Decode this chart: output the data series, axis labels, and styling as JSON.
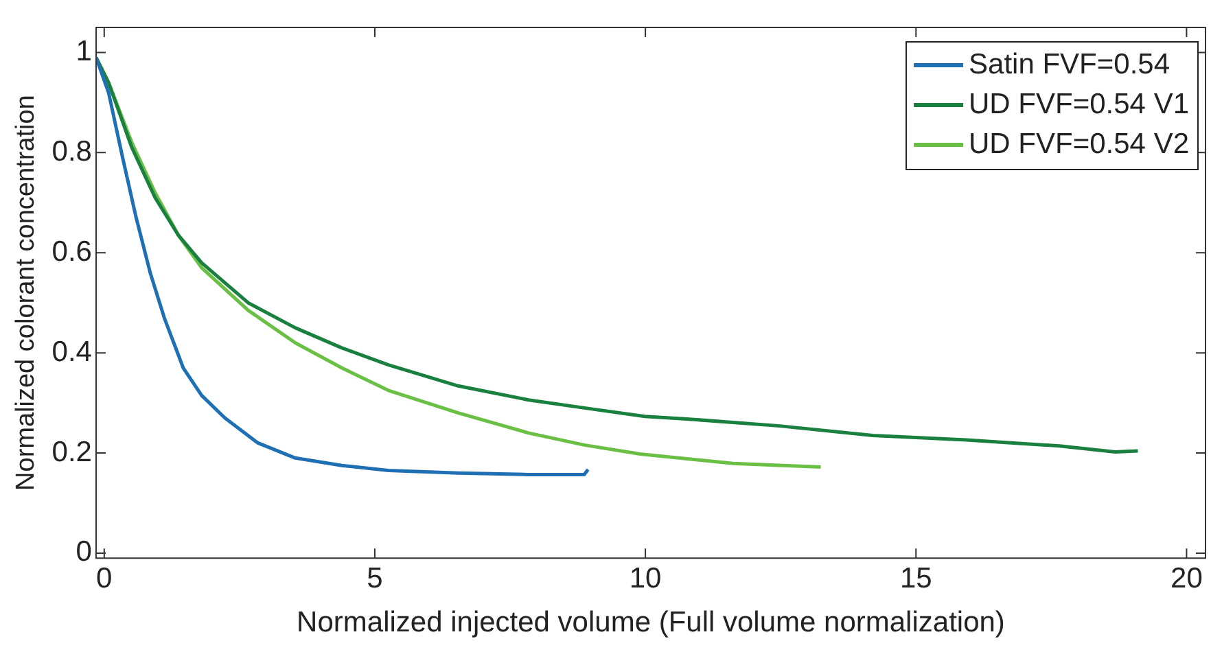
{
  "chart_data": {
    "type": "line",
    "xlabel": "Normalized injected volume (Full volume normalization)",
    "ylabel": "Normalized colorant concentration",
    "xlim": [
      -0.15,
      20.35
    ],
    "ylim": [
      -0.01,
      1.05
    ],
    "xticks": [
      0,
      5,
      10,
      15,
      20
    ],
    "yticks": [
      0,
      {
        "value": 0.2,
        "label": "0.2"
      },
      {
        "value": 0.4,
        "label": "0.4"
      },
      {
        "value": 0.6,
        "label": "0.6"
      },
      {
        "value": 0.8,
        "label": "0.8"
      },
      1
    ],
    "grid": false,
    "legend": "top right",
    "marker": "none",
    "line_style": "solid",
    "series": [
      {
        "name": "Satin FVF=0.54",
        "color": "#1f6fb4",
        "x": [
          -0.15,
          0.08,
          0.34,
          0.59,
          0.85,
          1.11,
          1.46,
          1.8,
          2.23,
          2.84,
          3.53,
          4.39,
          5.25,
          6.54,
          7.84,
          8.87,
          8.94
        ],
        "values": [
          0.99,
          0.92,
          0.79,
          0.67,
          0.56,
          0.47,
          0.37,
          0.315,
          0.27,
          0.22,
          0.19,
          0.175,
          0.165,
          0.16,
          0.157,
          0.157,
          0.167
        ]
      },
      {
        "name": "UD FVF=0.54 V1",
        "color": "#1a8040",
        "x": [
          -0.15,
          0.08,
          0.51,
          0.94,
          1.37,
          1.8,
          2.66,
          3.53,
          4.39,
          5.25,
          6.54,
          7.84,
          8.87,
          9.99,
          10.76,
          12.48,
          14.2,
          15.93,
          17.65,
          18.68,
          19.1
        ],
        "values": [
          0.99,
          0.94,
          0.81,
          0.71,
          0.635,
          0.58,
          0.5,
          0.45,
          0.41,
          0.376,
          0.334,
          0.306,
          0.29,
          0.273,
          0.268,
          0.254,
          0.235,
          0.226,
          0.214,
          0.202,
          0.204
        ]
      },
      {
        "name": "UD FVF=0.54 V2",
        "color": "#6abf45",
        "x": [
          -0.15,
          0.08,
          0.51,
          0.94,
          1.37,
          1.8,
          2.66,
          3.53,
          4.39,
          5.25,
          6.54,
          7.84,
          8.87,
          9.9,
          11.62,
          13.24
        ],
        "values": [
          0.99,
          0.94,
          0.82,
          0.72,
          0.635,
          0.57,
          0.485,
          0.42,
          0.37,
          0.325,
          0.28,
          0.24,
          0.216,
          0.198,
          0.179,
          0.172
        ]
      }
    ]
  }
}
